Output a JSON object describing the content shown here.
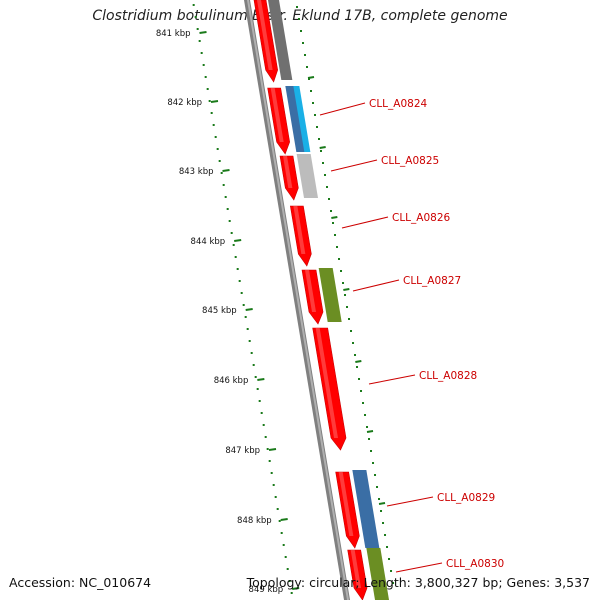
{
  "title": "Clostridium botulinum B str. Eklund 17B, complete genome",
  "footer": {
    "accession": "Accession: NC_010674",
    "summary": "Topology: circular; Length: 3,800,327 bp; Genes: 3,537"
  },
  "ticks": [
    "841 kbp",
    "842 kbp",
    "843 kbp",
    "844 kbp",
    "845 kbp",
    "846 kbp",
    "847 kbp",
    "848 kbp",
    "849 kbp"
  ],
  "labels": [
    "CLL_A0824",
    "CLL_A0825",
    "CLL_A0826",
    "CLL_A0827",
    "CLL_A0828",
    "CLL_A0829",
    "CLL_A0830"
  ],
  "colors": {
    "cds": "#ff0000",
    "label": "#cc0000",
    "tick": "#1a7a1a",
    "backbone": "#808080",
    "cog_gray": "#707070",
    "cog_cyan": "#1ab0e6",
    "cog_lightgray": "#bcbcbc",
    "cog_olive": "#6b8e23",
    "cog_steelblue": "#3a6ea5"
  }
}
